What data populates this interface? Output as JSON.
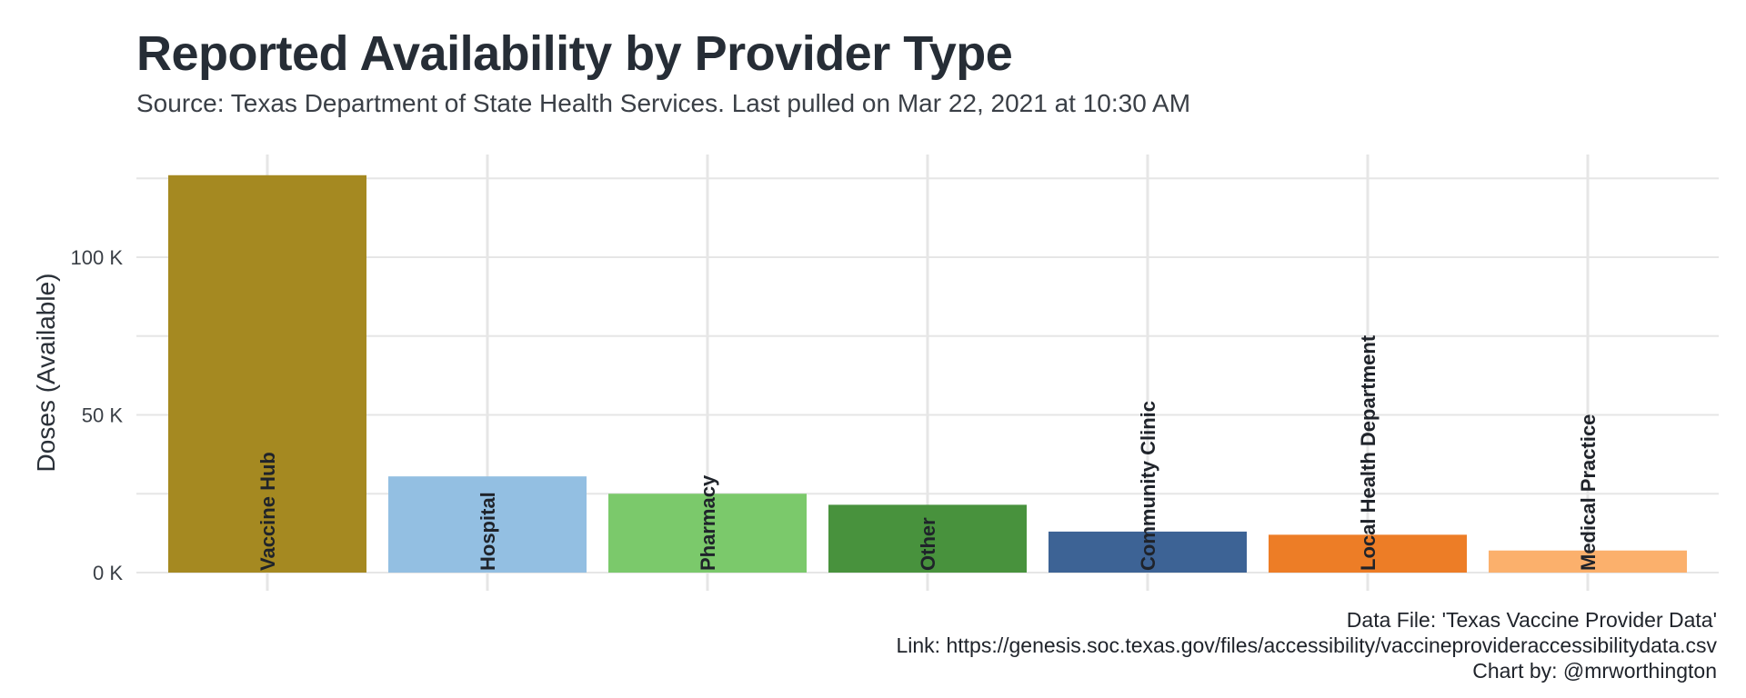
{
  "title": "Reported Availability by Provider Type",
  "subtitle": "Source: Texas Department of State Health Services. Last pulled on Mar 22, 2021 at 10:30 AM",
  "caption": {
    "line1": "Data File: 'Texas Vaccine Provider Data'",
    "line2": "Link: https://genesis.soc.texas.gov/files/accessibility/vaccineprovideraccessibilitydata.csv",
    "line3": "Chart by: @mrworthington"
  },
  "chart_data": {
    "type": "bar",
    "ylabel": "Doses (Available)",
    "xlabel": "",
    "ylim": [
      0,
      125000
    ],
    "yticks": [
      0,
      50000,
      100000
    ],
    "ytick_labels": [
      "0 K",
      "50 K",
      "100 K"
    ],
    "grid": true,
    "categories": [
      "Vaccine Hub",
      "Hospital",
      "Pharmacy",
      "Other",
      "Community Clinic",
      "Local Health Department",
      "Medical Practice"
    ],
    "values": [
      126000,
      30500,
      25000,
      21500,
      13000,
      12000,
      7000
    ],
    "colors": [
      "#a58921",
      "#93bfe2",
      "#7bc96b",
      "#48923d",
      "#3d6395",
      "#ed7d26",
      "#fbb06c"
    ],
    "label_color": "#1f232a"
  }
}
